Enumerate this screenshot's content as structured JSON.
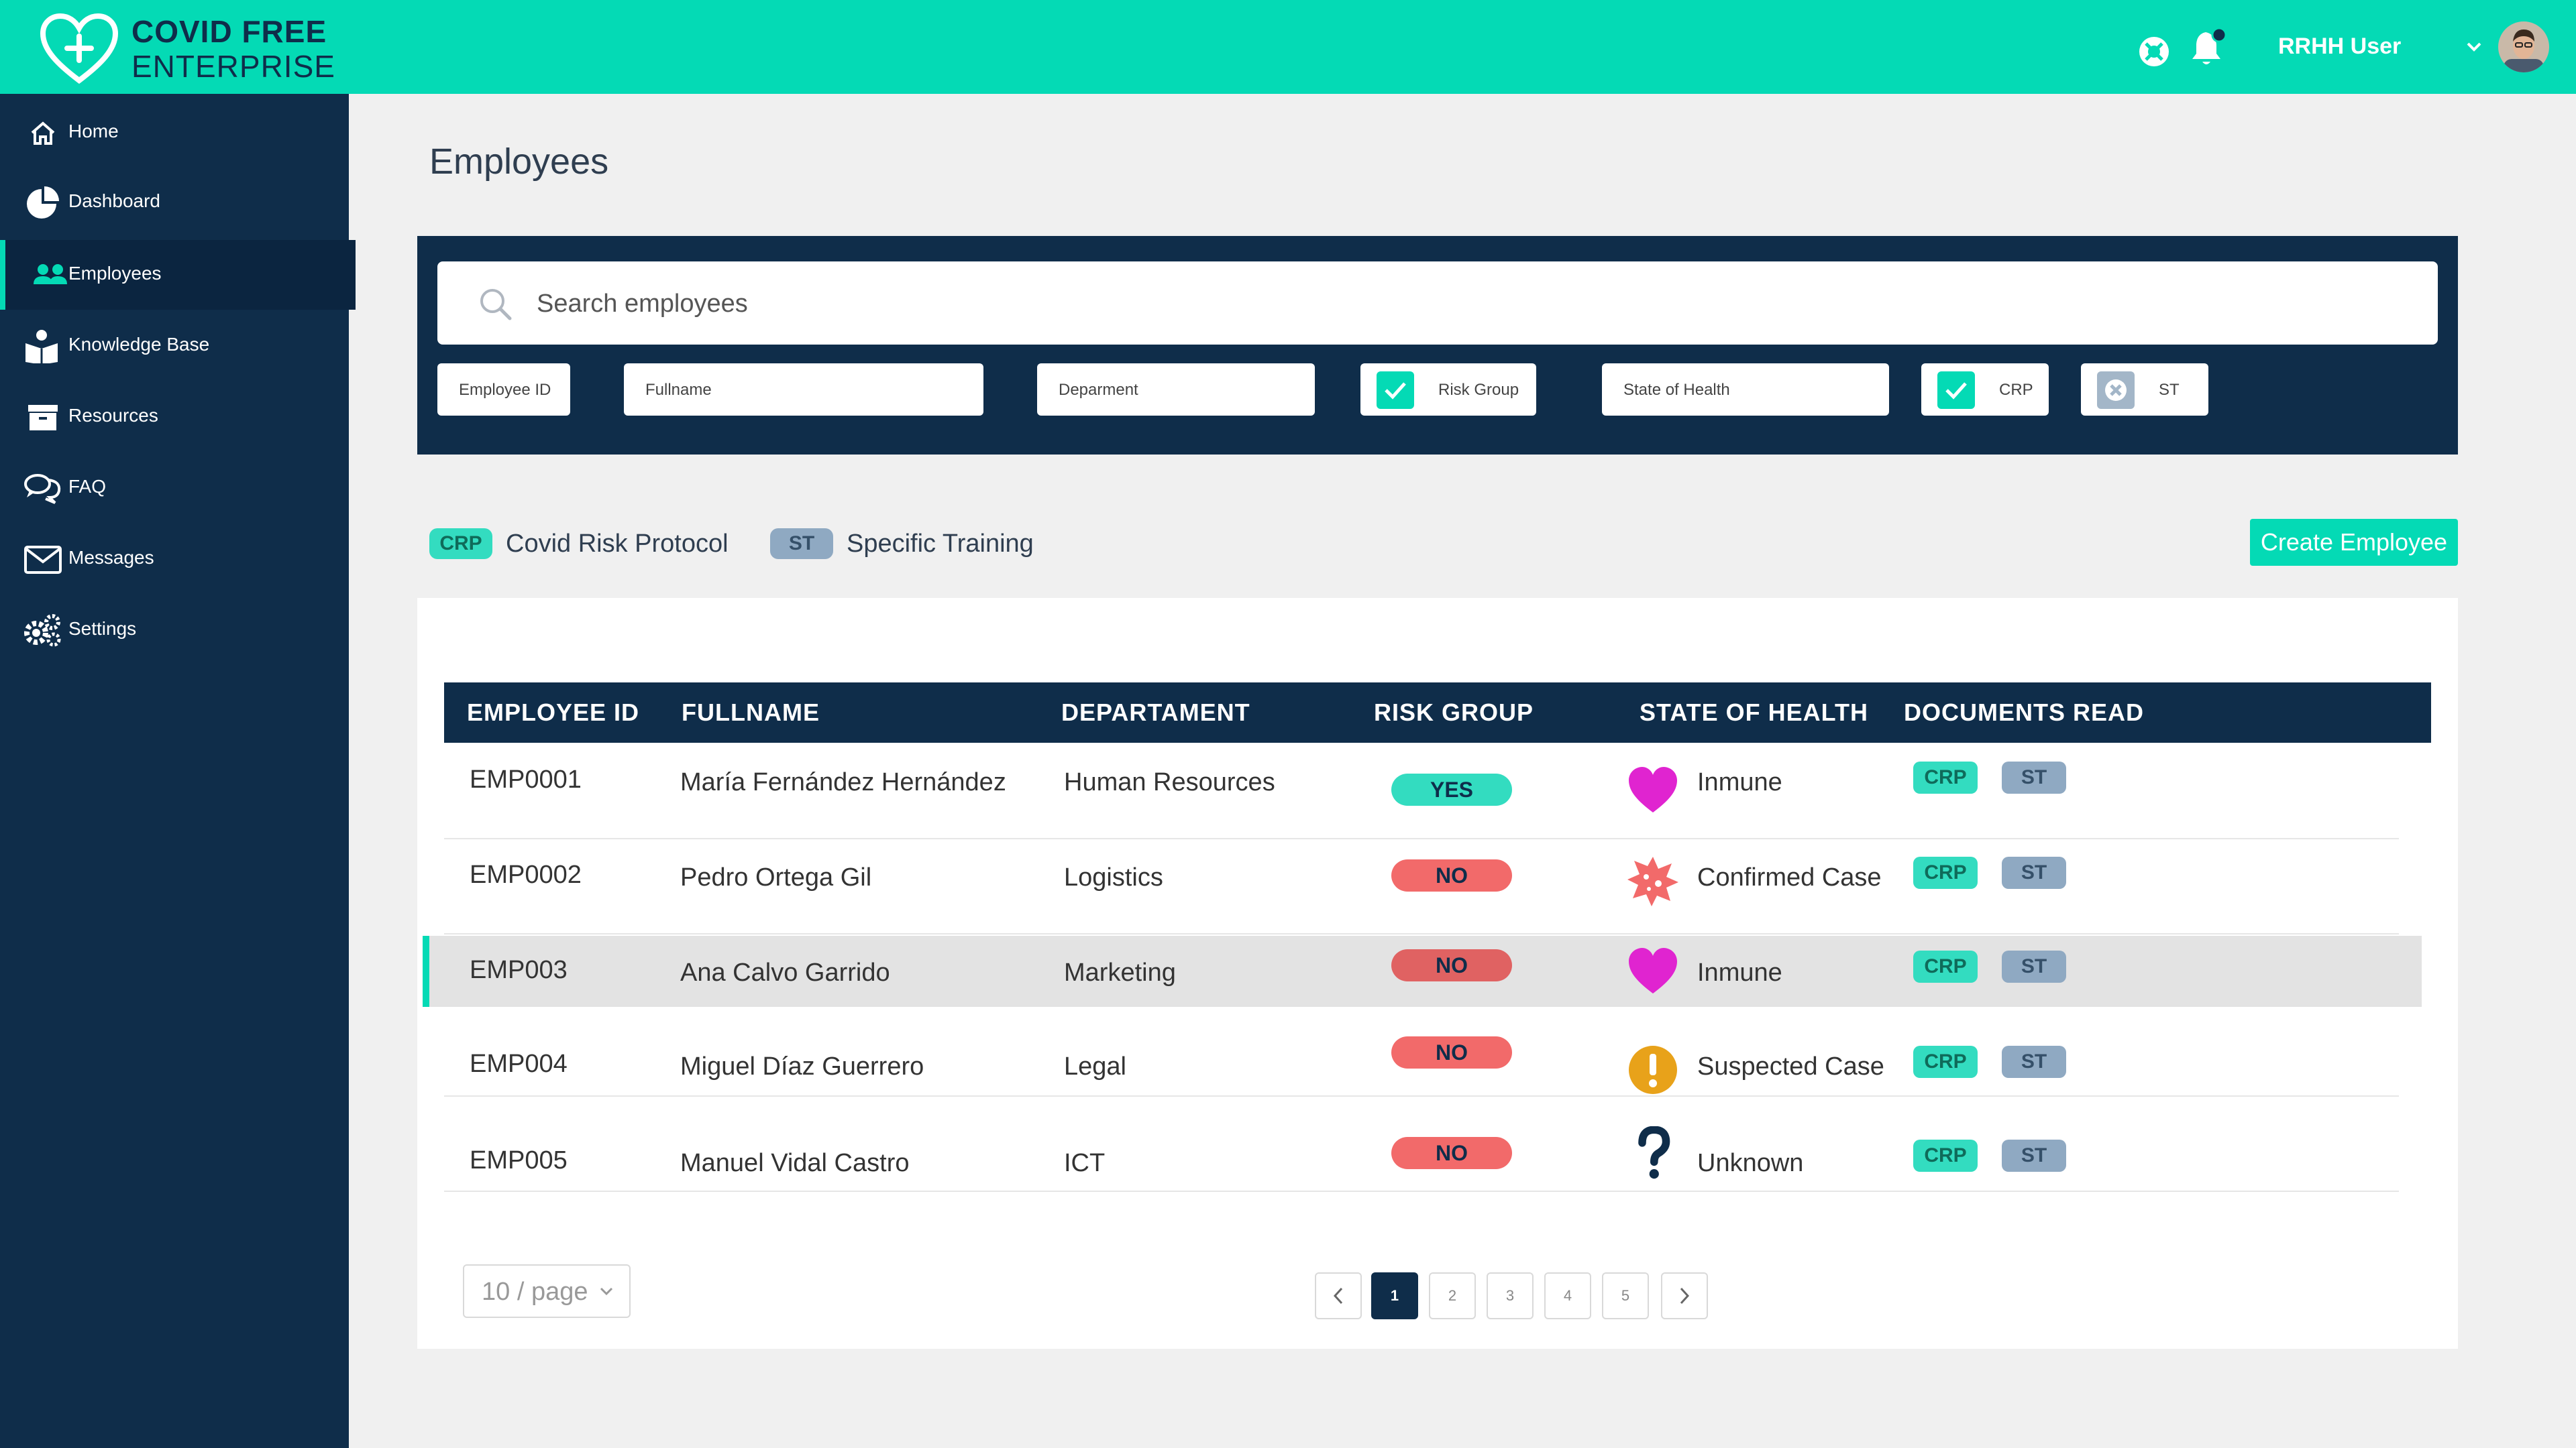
{
  "header": {
    "brand_line1": "COVID FREE",
    "brand_line2": "ENTERPRISE",
    "user_name": "RRHH User"
  },
  "sidebar": {
    "items": [
      {
        "label": "Home",
        "icon": "home-icon"
      },
      {
        "label": "Dashboard",
        "icon": "pie-chart-icon"
      },
      {
        "label": "Employees",
        "icon": "users-icon",
        "active": true
      },
      {
        "label": "Knowledge Base",
        "icon": "book-reader-icon"
      },
      {
        "label": "Resources",
        "icon": "archive-box-icon"
      },
      {
        "label": "FAQ",
        "icon": "chat-bubbles-icon"
      },
      {
        "label": "Messages",
        "icon": "envelope-icon"
      },
      {
        "label": "Settings",
        "icon": "gears-icon"
      }
    ]
  },
  "main": {
    "title": "Employees",
    "search": {
      "placeholder": "Search employees"
    },
    "filters": {
      "employee_id": "Employee ID",
      "fullname": "Fullname",
      "department": "Deparment",
      "risk_group": {
        "label": "Risk Group",
        "checked": true
      },
      "state_of_health": "State of Health",
      "crp": {
        "label": "CRP",
        "checked": true
      },
      "st": {
        "label": "ST",
        "checked": false
      }
    },
    "legend": [
      {
        "badge": "CRP",
        "text": "Covid Risk Protocol"
      },
      {
        "badge": "ST",
        "text": "Specific Training"
      }
    ],
    "create_button": "Create Employee"
  },
  "table": {
    "columns": [
      "EMPLOYEE ID",
      "FULLNAME",
      "DEPARTAMENT",
      "RISK GROUP",
      "STATE OF HEALTH",
      "DOCUMENTS READ"
    ],
    "rows": [
      {
        "id": "EMP0001",
        "name": "María Fernández Hernández",
        "dept": "Human Resources",
        "risk": "YES",
        "health": "Inmune",
        "health_icon": "heart-icon",
        "docs": [
          "CRP",
          "ST"
        ]
      },
      {
        "id": "EMP0002",
        "name": "Pedro Ortega Gil",
        "dept": "Logistics",
        "risk": "NO",
        "health": "Confirmed Case",
        "health_icon": "virus-icon",
        "docs": [
          "CRP",
          "ST"
        ]
      },
      {
        "id": "EMP003",
        "name": "Ana Calvo Garrido",
        "dept": "Marketing",
        "risk": "NO",
        "health": "Inmune",
        "health_icon": "heart-icon",
        "docs": [
          "CRP",
          "ST"
        ]
      },
      {
        "id": "EMP004",
        "name": "Miguel Díaz Guerrero",
        "dept": "Legal",
        "risk": "NO",
        "health": "Suspected Case",
        "health_icon": "exclamation-circle-icon",
        "docs": [
          "CRP",
          "ST"
        ]
      },
      {
        "id": "EMP005",
        "name": "Manuel Vidal Castro",
        "dept": "ICT",
        "risk": "NO",
        "health": "Unknown",
        "health_icon": "question-mark-icon",
        "docs": [
          "CRP",
          "ST"
        ]
      }
    ]
  },
  "pagination": {
    "page_size": "10 / page",
    "pages": [
      "1",
      "2",
      "3",
      "4",
      "5"
    ],
    "current": "1"
  },
  "colors": {
    "accent": "#04dab5",
    "navy": "#0f2d4a",
    "risk_no": "#f26a6a",
    "heart": "#e024d0",
    "virus": "#f26a6a",
    "suspected": "#e8a21a"
  }
}
